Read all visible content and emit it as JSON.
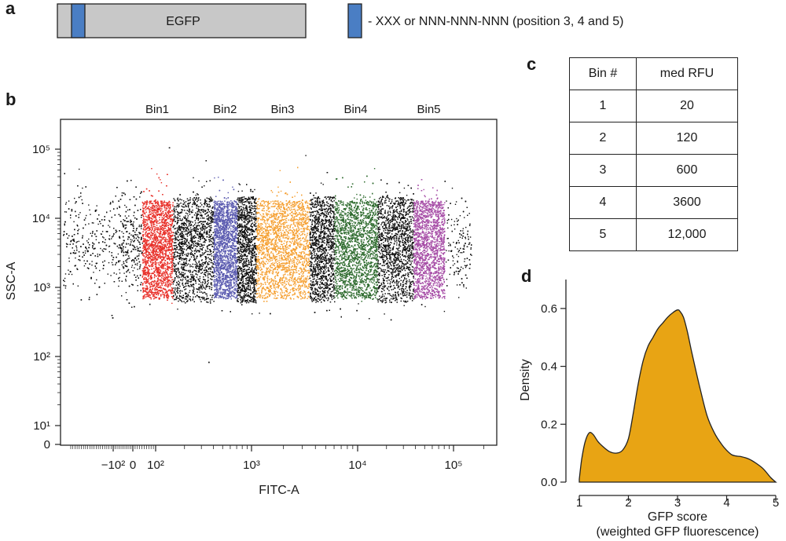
{
  "panels": {
    "a": "a",
    "b": "b",
    "c": "c",
    "d": "d"
  },
  "panel_a": {
    "construct_label": "EGFP",
    "legend_text": "- XXX or NNN-NNN-NNN (position 3, 4 and 5)",
    "tag_color": "#4a7ec4",
    "body_color": "#c8c8c8"
  },
  "chart_data": [
    {
      "type": "scatter",
      "panel": "b",
      "xlabel": "FITC-A",
      "ylabel": "SSC-A",
      "x_scale": "biexponential",
      "y_scale": "log",
      "xticks": [
        "−10²",
        "0",
        "10²",
        "10³",
        "10⁴",
        "10⁵"
      ],
      "yticks": [
        "0",
        "10¹",
        "10²",
        "10³",
        "10⁴",
        "10⁵"
      ],
      "gates": [
        {
          "name": "Bin1",
          "color": "#e8312a",
          "fitc_range": [
            40,
            150
          ]
        },
        {
          "name": "Bin2",
          "color": "#5b5bb0",
          "fitc_range": [
            400,
            700
          ]
        },
        {
          "name": "Bin3",
          "color": "#f5a032",
          "fitc_range": [
            1100,
            3500
          ]
        },
        {
          "name": "Bin4",
          "color": "#2e6b2e",
          "fitc_range": [
            6000,
            16000
          ]
        },
        {
          "name": "Bin5",
          "color": "#a64ca6",
          "fitc_range": [
            38000,
            80000
          ]
        }
      ],
      "ungated_color": "#111111"
    },
    {
      "type": "table",
      "panel": "c",
      "columns": [
        "Bin #",
        "med RFU"
      ],
      "rows": [
        [
          "1",
          "20"
        ],
        [
          "2",
          "120"
        ],
        [
          "3",
          "600"
        ],
        [
          "4",
          "3600"
        ],
        [
          "5",
          "12,000"
        ]
      ]
    },
    {
      "type": "area",
      "panel": "d",
      "xlabel": "GFP score",
      "xlabel_sub": "(weighted GFP fluorescence)",
      "ylabel": "Density",
      "xlim": [
        1,
        5
      ],
      "ylim": [
        0,
        0.7
      ],
      "xticks": [
        "1",
        "2",
        "3",
        "4",
        "5"
      ],
      "yticks": [
        "0.0",
        "0.2",
        "0.4",
        "0.6"
      ],
      "fill_color": "#e8a414",
      "x": [
        1.0,
        1.05,
        1.12,
        1.2,
        1.28,
        1.38,
        1.5,
        1.62,
        1.75,
        1.88,
        2.0,
        2.1,
        2.2,
        2.3,
        2.4,
        2.5,
        2.6,
        2.7,
        2.8,
        2.9,
        3.0,
        3.05,
        3.12,
        3.2,
        3.3,
        3.45,
        3.6,
        3.75,
        3.9,
        4.0,
        4.1,
        4.2,
        4.3,
        4.45,
        4.6,
        4.75,
        4.9,
        5.0
      ],
      "y": [
        0.01,
        0.08,
        0.14,
        0.17,
        0.165,
        0.14,
        0.12,
        0.105,
        0.1,
        0.11,
        0.15,
        0.24,
        0.34,
        0.42,
        0.47,
        0.5,
        0.53,
        0.55,
        0.57,
        0.585,
        0.595,
        0.59,
        0.57,
        0.52,
        0.44,
        0.33,
        0.23,
        0.17,
        0.13,
        0.11,
        0.095,
        0.09,
        0.088,
        0.08,
        0.065,
        0.045,
        0.015,
        0.0
      ]
    }
  ]
}
